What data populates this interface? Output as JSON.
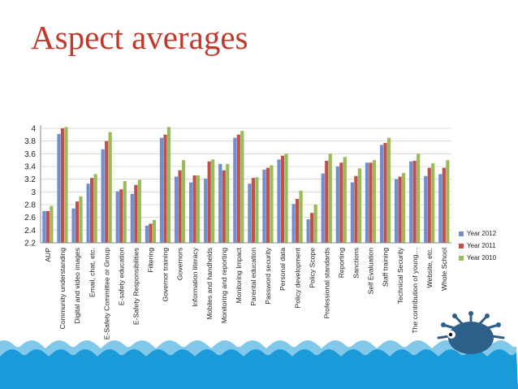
{
  "title": "Aspect averages",
  "colors": {
    "title": "#c0392b",
    "water": "#1a9ad8",
    "mascot": "#2c5f8a"
  },
  "chart_data": {
    "type": "bar",
    "title": "",
    "xlabel": "",
    "ylabel": "",
    "ylim": [
      2.2,
      4
    ],
    "yticks": [
      "4",
      "3.8",
      "3.6",
      "3.4",
      "3.2",
      "3",
      "2.8",
      "2.6",
      "2.4",
      "2.2"
    ],
    "grid": true,
    "legend": "right",
    "categories": [
      "AUP",
      "Community understanding",
      "Digital and video images",
      "Email, chat, etc.",
      "E-Safety Committee or Group",
      "E-safety education",
      "E-Safety Responsibilities",
      "Filtering",
      "Governor training",
      "Governors",
      "Information literacy",
      "Mobiles and handhelds",
      "Monitoring and reporting",
      "Monitoring Impact",
      "Parental education",
      "Password security",
      "Personal data",
      "Policy development",
      "Policy Scope",
      "Professional standards",
      "Reporting",
      "Sanctions",
      "Self Evaluation",
      "Staff training",
      "Technical Security",
      "The contribution of young…",
      "Website, etc.",
      "Whole School"
    ],
    "series": [
      {
        "name": "Year 2012",
        "color": "#6f8fcf",
        "values": [
          2.7,
          3.91,
          2.74,
          3.13,
          3.67,
          3.01,
          2.97,
          2.47,
          3.85,
          3.24,
          3.15,
          3.21,
          3.44,
          3.85,
          3.13,
          3.35,
          3.51,
          2.81,
          2.57,
          3.29,
          3.4,
          3.15,
          3.46,
          3.74,
          3.2,
          3.48,
          3.25,
          3.28
        ]
      },
      {
        "name": "Year 2011",
        "color": "#c0504d",
        "values": [
          2.7,
          4.0,
          2.85,
          3.22,
          3.8,
          3.04,
          3.11,
          2.5,
          3.9,
          3.34,
          3.26,
          3.48,
          3.34,
          3.9,
          3.22,
          3.38,
          3.57,
          2.89,
          2.67,
          3.49,
          3.46,
          3.25,
          3.46,
          3.77,
          3.24,
          3.49,
          3.38,
          3.38
        ]
      },
      {
        "name": "Year 2010",
        "color": "#9bbb59",
        "values": [
          2.78,
          4.02,
          2.93,
          3.28,
          3.94,
          3.17,
          3.19,
          2.56,
          4.02,
          3.5,
          3.26,
          3.51,
          3.44,
          3.96,
          3.23,
          3.42,
          3.6,
          3.02,
          2.8,
          3.6,
          3.55,
          3.37,
          3.5,
          3.85,
          3.3,
          3.6,
          3.45,
          3.5
        ]
      }
    ]
  }
}
